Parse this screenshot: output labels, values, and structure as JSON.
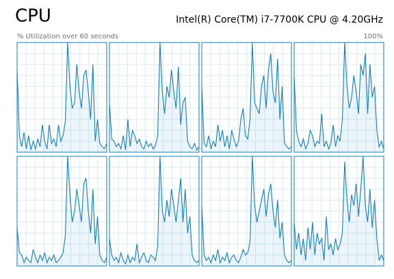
{
  "header": {
    "title": "CPU",
    "processor": "Intel(R) Core(TM) i7-7700K CPU @ 4.20GHz",
    "caption": "% Utilization over 60 seconds",
    "max_label": "100%"
  },
  "chart_data": [
    {
      "type": "area",
      "color": "#117dbb",
      "ylim": [
        0,
        100
      ],
      "values": [
        75,
        15,
        5,
        18,
        3,
        15,
        2,
        10,
        3,
        12,
        5,
        25,
        10,
        3,
        25,
        8,
        12,
        5,
        25,
        10,
        15,
        28,
        100,
        60,
        40,
        45,
        80,
        55,
        40,
        70,
        75,
        55,
        30,
        80,
        10,
        30,
        8,
        5,
        3,
        8
      ]
    },
    {
      "type": "area",
      "color": "#117dbb",
      "ylim": [
        0,
        100
      ],
      "values": [
        45,
        12,
        10,
        5,
        8,
        3,
        15,
        2,
        30,
        5,
        20,
        15,
        8,
        12,
        5,
        3,
        10,
        5,
        8,
        3,
        6,
        15,
        100,
        55,
        35,
        60,
        50,
        75,
        55,
        40,
        78,
        25,
        45,
        50,
        10,
        5,
        3,
        8,
        2,
        5
      ]
    },
    {
      "type": "area",
      "color": "#117dbb",
      "ylim": [
        0,
        100
      ],
      "values": [
        60,
        8,
        5,
        15,
        3,
        10,
        5,
        25,
        10,
        20,
        5,
        15,
        3,
        20,
        12,
        5,
        10,
        30,
        40,
        15,
        12,
        30,
        100,
        45,
        40,
        35,
        60,
        70,
        40,
        75,
        90,
        55,
        45,
        85,
        30,
        60,
        8,
        5,
        3,
        5
      ]
    },
    {
      "type": "area",
      "color": "#117dbb",
      "ylim": [
        0,
        100
      ],
      "values": [
        70,
        20,
        10,
        5,
        12,
        3,
        8,
        20,
        15,
        5,
        10,
        8,
        35,
        5,
        10,
        3,
        8,
        25,
        5,
        15,
        10,
        30,
        100,
        60,
        40,
        50,
        70,
        55,
        35,
        80,
        70,
        90,
        35,
        80,
        50,
        60,
        20,
        5,
        10,
        3
      ]
    },
    {
      "type": "area",
      "color": "#117dbb",
      "ylim": [
        0,
        100
      ],
      "values": [
        35,
        12,
        10,
        3,
        8,
        5,
        3,
        15,
        8,
        3,
        10,
        5,
        12,
        3,
        8,
        5,
        10,
        3,
        5,
        8,
        12,
        28,
        100,
        65,
        40,
        50,
        70,
        55,
        40,
        75,
        80,
        50,
        30,
        70,
        20,
        45,
        10,
        5,
        3,
        8
      ]
    },
    {
      "type": "area",
      "color": "#117dbb",
      "ylim": [
        0,
        100
      ],
      "values": [
        25,
        10,
        5,
        8,
        3,
        12,
        5,
        2,
        10,
        3,
        8,
        5,
        20,
        3,
        8,
        12,
        5,
        3,
        10,
        8,
        5,
        18,
        100,
        50,
        40,
        60,
        45,
        70,
        55,
        40,
        60,
        80,
        40,
        70,
        30,
        45,
        10,
        5,
        3,
        5
      ]
    },
    {
      "type": "area",
      "color": "#117dbb",
      "ylim": [
        0,
        100
      ],
      "values": [
        55,
        10,
        5,
        8,
        3,
        10,
        5,
        15,
        3,
        8,
        5,
        12,
        3,
        8,
        10,
        5,
        3,
        8,
        15,
        10,
        12,
        22,
        100,
        55,
        40,
        50,
        60,
        70,
        45,
        65,
        75,
        50,
        35,
        60,
        25,
        40,
        10,
        5,
        3,
        5
      ]
    },
    {
      "type": "area",
      "color": "#117dbb",
      "ylim": [
        0,
        100
      ],
      "values": [
        40,
        15,
        30,
        10,
        25,
        5,
        35,
        15,
        40,
        10,
        30,
        20,
        25,
        5,
        45,
        15,
        20,
        10,
        25,
        15,
        20,
        30,
        95,
        60,
        40,
        65,
        55,
        75,
        45,
        70,
        100,
        55,
        40,
        70,
        35,
        60,
        25,
        5,
        10,
        5
      ]
    }
  ]
}
